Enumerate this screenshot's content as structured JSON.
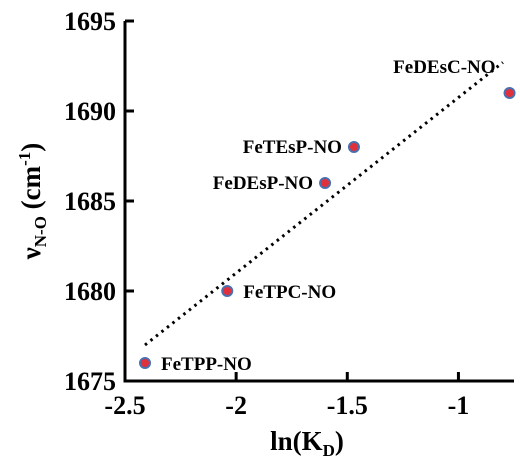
{
  "chart_data": {
    "type": "scatter",
    "xlabel": {
      "main": "ln(K",
      "sub": "D",
      "end": ")"
    },
    "ylabel": {
      "main": "ν",
      "sub": "N-O",
      "mid": " (cm",
      "sup": "-1",
      "end": ")"
    },
    "xlim": [
      -2.5,
      -0.75
    ],
    "ylim": [
      1675,
      1695
    ],
    "x_ticks": [
      -2.5,
      -2,
      -1.5,
      -1
    ],
    "x_tick_labels": [
      "-2.5",
      "-2",
      "-1.5",
      "-1"
    ],
    "y_ticks": [
      1675,
      1680,
      1685,
      1690,
      1695
    ],
    "y_tick_labels": [
      "1675",
      "1680",
      "1685",
      "1690",
      "1695"
    ],
    "points": [
      {
        "x": -2.41,
        "y": 1676.0,
        "label": "FeTPP-NO"
      },
      {
        "x": -2.04,
        "y": 1680.0,
        "label": "FeTPC-NO"
      },
      {
        "x": -1.6,
        "y": 1686.0,
        "label": "FeDEsP-NO"
      },
      {
        "x": -1.47,
        "y": 1688.0,
        "label": "FeTEsP-NO"
      },
      {
        "x": -0.77,
        "y": 1691.0,
        "label": "FeDEsC-NO"
      }
    ],
    "trendline": {
      "style": "dotted",
      "x": [
        -2.41,
        -0.8
      ],
      "y": [
        1677.0,
        1692.7
      ]
    },
    "marker_fill": "#e0303c",
    "marker_edge": "#4a6fb0",
    "grid": false,
    "legend": false
  }
}
